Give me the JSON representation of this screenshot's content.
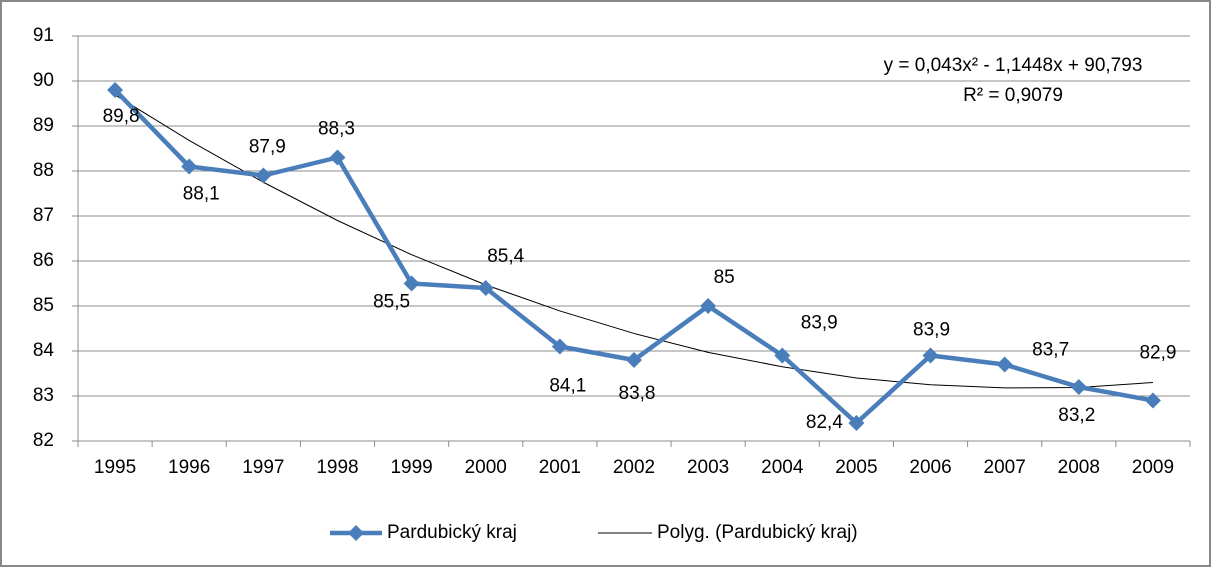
{
  "chart_data": {
    "type": "line",
    "categories": [
      "1995",
      "1996",
      "1997",
      "1998",
      "1999",
      "2000",
      "2001",
      "2002",
      "2003",
      "2004",
      "2005",
      "2006",
      "2007",
      "2008",
      "2009"
    ],
    "series": [
      {
        "name": "Pardubický kraj",
        "color": "#4a7ebb",
        "values": [
          89.8,
          88.1,
          87.9,
          88.3,
          85.5,
          85.4,
          84.1,
          83.8,
          85,
          83.9,
          82.4,
          83.9,
          83.7,
          83.2,
          82.9
        ],
        "value_labels": [
          "89,8",
          "88,1",
          "87,9",
          "88,3",
          "85,5",
          "85,4",
          "84,1",
          "83,8",
          "85",
          "83,9",
          "82,4",
          "83,9",
          "83,7",
          "83,2",
          "82,9"
        ]
      },
      {
        "name": "Polyg. (Pardubický kraj)",
        "color": "#000000",
        "values": [
          89.69,
          88.68,
          87.75,
          86.9,
          86.14,
          85.47,
          84.89,
          84.39,
          83.97,
          83.65,
          83.4,
          83.25,
          83.18,
          83.19,
          83.3
        ]
      }
    ],
    "annotations": [
      "y = 0,043x² - 1,1448x + 90,793",
      "R² = 0,9079"
    ],
    "ylim": [
      82,
      91
    ],
    "yticks": [
      82,
      83,
      84,
      85,
      86,
      87,
      88,
      89,
      90,
      91
    ],
    "grid": true,
    "legend": "bottom"
  }
}
